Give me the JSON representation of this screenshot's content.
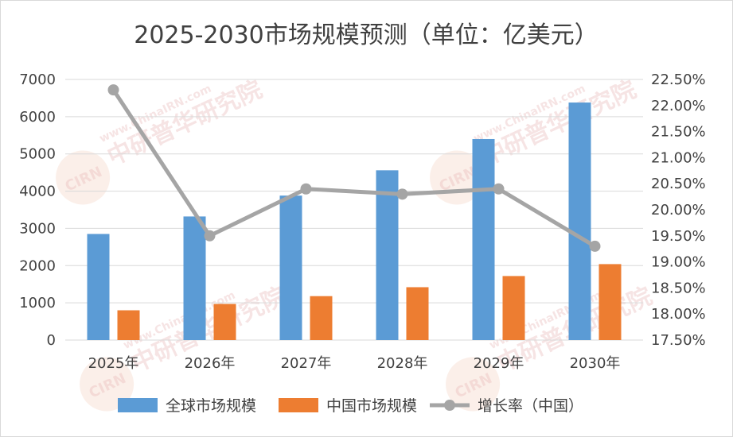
{
  "chart_data": {
    "type": "bar",
    "title": "2025-2030市场规模预测（单位：亿美元）",
    "categories": [
      "2025年",
      "2026年",
      "2027年",
      "2028年",
      "2029年",
      "2030年"
    ],
    "series": [
      {
        "name": "全球市场规模",
        "kind": "bar",
        "axis": "left",
        "color": "#5B9BD5",
        "values": [
          2850,
          3320,
          3880,
          4560,
          5400,
          6380
        ]
      },
      {
        "name": "中国市场规模",
        "kind": "bar",
        "axis": "left",
        "color": "#ED7D31",
        "values": [
          800,
          970,
          1180,
          1420,
          1720,
          2040
        ]
      },
      {
        "name": "增长率（中国）",
        "kind": "line",
        "axis": "right",
        "color": "#A5A5A5",
        "values": [
          0.223,
          0.195,
          0.204,
          0.203,
          0.204,
          0.193
        ]
      }
    ],
    "y_left": {
      "min": 0,
      "max": 7000,
      "step": 1000,
      "ticks": [
        "0",
        "1000",
        "2000",
        "3000",
        "4000",
        "5000",
        "6000",
        "7000"
      ]
    },
    "y_right": {
      "min": 0.175,
      "max": 0.225,
      "step": 0.005,
      "ticks": [
        "17.50%",
        "18.00%",
        "18.50%",
        "19.00%",
        "19.50%",
        "20.00%",
        "20.50%",
        "21.00%",
        "21.50%",
        "22.00%",
        "22.50%"
      ]
    },
    "grid": true,
    "legend_position": "bottom"
  },
  "watermark": {
    "text": "www.ChinaIRN.com",
    "name": "中研普华研究院",
    "logo": "CIRN"
  }
}
